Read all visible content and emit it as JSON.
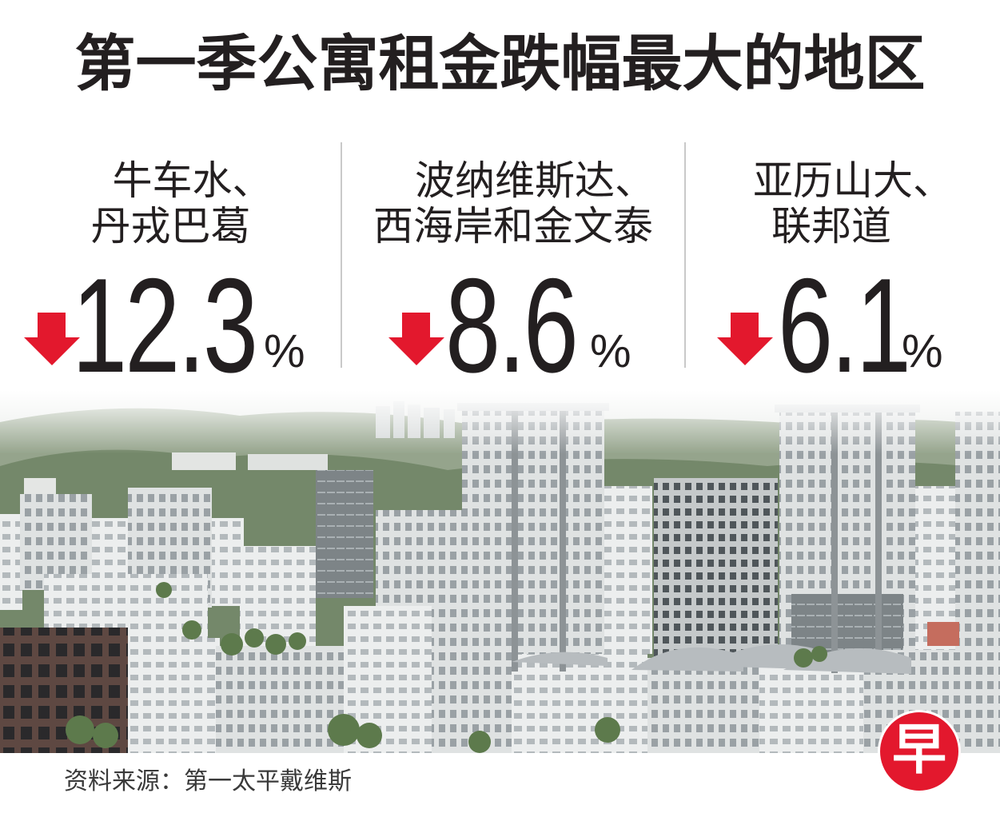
{
  "title": "第一季公寓租金跌幅最大的地区",
  "regions": [
    {
      "name_lines": [
        "牛车水、",
        "丹戎巴葛"
      ],
      "change_percent": 12.3,
      "unit": "%",
      "direction": "down"
    },
    {
      "name_lines": [
        "波纳维斯达、",
        "西海岸和金文泰"
      ],
      "change_percent": 8.6,
      "unit": "%",
      "direction": "down"
    },
    {
      "name_lines": [
        "亚历山大、",
        "联邦道"
      ],
      "change_percent": 6.1,
      "unit": "%",
      "direction": "down"
    }
  ],
  "source": "资料来源：第一太平戴维斯",
  "logo": {
    "text": "早"
  },
  "icons": {
    "change_direction": "down-arrow-icon"
  },
  "colors": {
    "text": "#231f20",
    "arrow": "#e3182d",
    "logo": "#e3182d",
    "divider": "#c9c9c9"
  }
}
